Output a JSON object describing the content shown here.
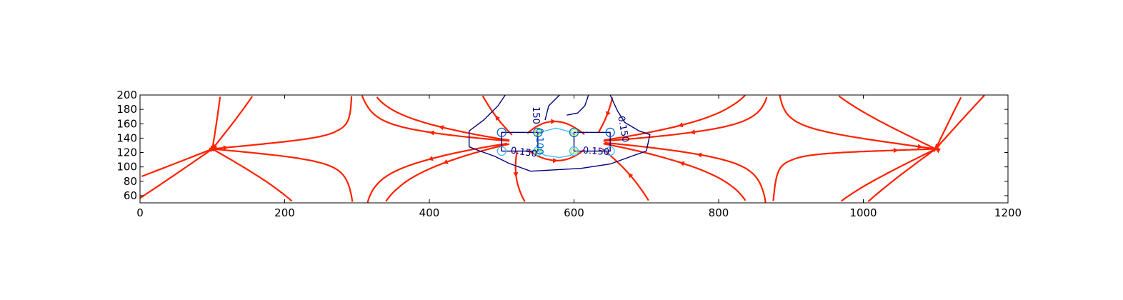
{
  "chart_data": {
    "type": "streamplot-contour",
    "title": "",
    "xlabel": "",
    "ylabel": "",
    "xlim": [
      0,
      1200
    ],
    "ylim": [
      50,
      200
    ],
    "x_ticks": [
      0,
      200,
      400,
      600,
      800,
      1000,
      1200
    ],
    "y_ticks": [
      60,
      80,
      100,
      120,
      140,
      160,
      180,
      200
    ],
    "grid": false,
    "legend": "none",
    "colors": {
      "streamlines": "#ff2200",
      "contour_outer": "#00007f",
      "contour_mid": "#0066cc",
      "contour_inner": "#44bbff",
      "contour_small": "#aaff44",
      "axis": "#000000"
    },
    "electrodes": [
      {
        "name": "left-electrode",
        "x": [
          500,
          550
        ],
        "y": [
          122,
          148
        ]
      },
      {
        "name": "right-electrode",
        "x": [
          600,
          650
        ],
        "y": [
          122,
          148
        ]
      }
    ],
    "contour_labels": [
      {
        "text": "0.150",
        "x": 512,
        "y": 119,
        "rotation": 8,
        "color": "#00007f"
      },
      {
        "text": "0.150",
        "x": 612,
        "y": 119,
        "rotation": 4,
        "color": "#00007f"
      },
      {
        "text": "150",
        "x": 543,
        "y": 184,
        "rotation": 90,
        "color": "#00007f"
      },
      {
        "text": "0.100",
        "x": 548,
        "y": 154,
        "rotation": 90,
        "color": "#0066cc"
      },
      {
        "text": "0.150",
        "x": 661,
        "y": 170,
        "rotation": 80,
        "color": "#00007f"
      }
    ]
  }
}
